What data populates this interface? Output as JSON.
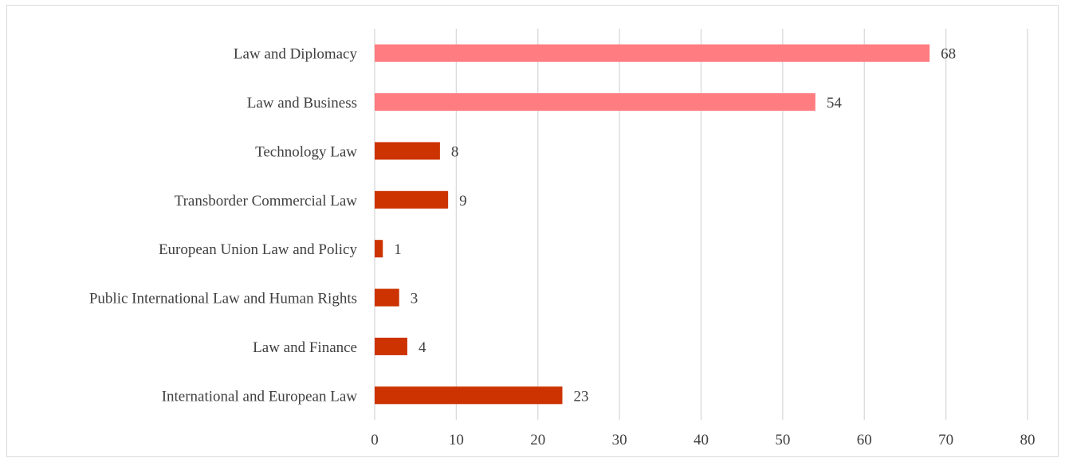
{
  "chart_data": {
    "type": "bar",
    "orientation": "horizontal",
    "categories": [
      "Law and Diplomacy",
      "Law and Business",
      "Technology Law",
      "Transborder Commercial Law",
      "European Union Law and Policy",
      "Public International Law and Human Rights",
      "Law and Finance",
      "International and European Law"
    ],
    "values": [
      68,
      54,
      8,
      9,
      1,
      3,
      4,
      23
    ],
    "bar_colors": [
      "#ff7c80",
      "#ff7c80",
      "#cc3300",
      "#cc3300",
      "#cc3300",
      "#cc3300",
      "#cc3300",
      "#cc3300"
    ],
    "xlim": [
      0,
      80
    ],
    "x_ticks": [
      0,
      10,
      20,
      30,
      40,
      50,
      60,
      70,
      80
    ],
    "grid": "vertical",
    "data_labels": true,
    "title": "",
    "xlabel": "",
    "ylabel": ""
  },
  "colors": {
    "gridline": "#d9d9d9",
    "text": "#404040",
    "border": "#d9d9d9"
  }
}
